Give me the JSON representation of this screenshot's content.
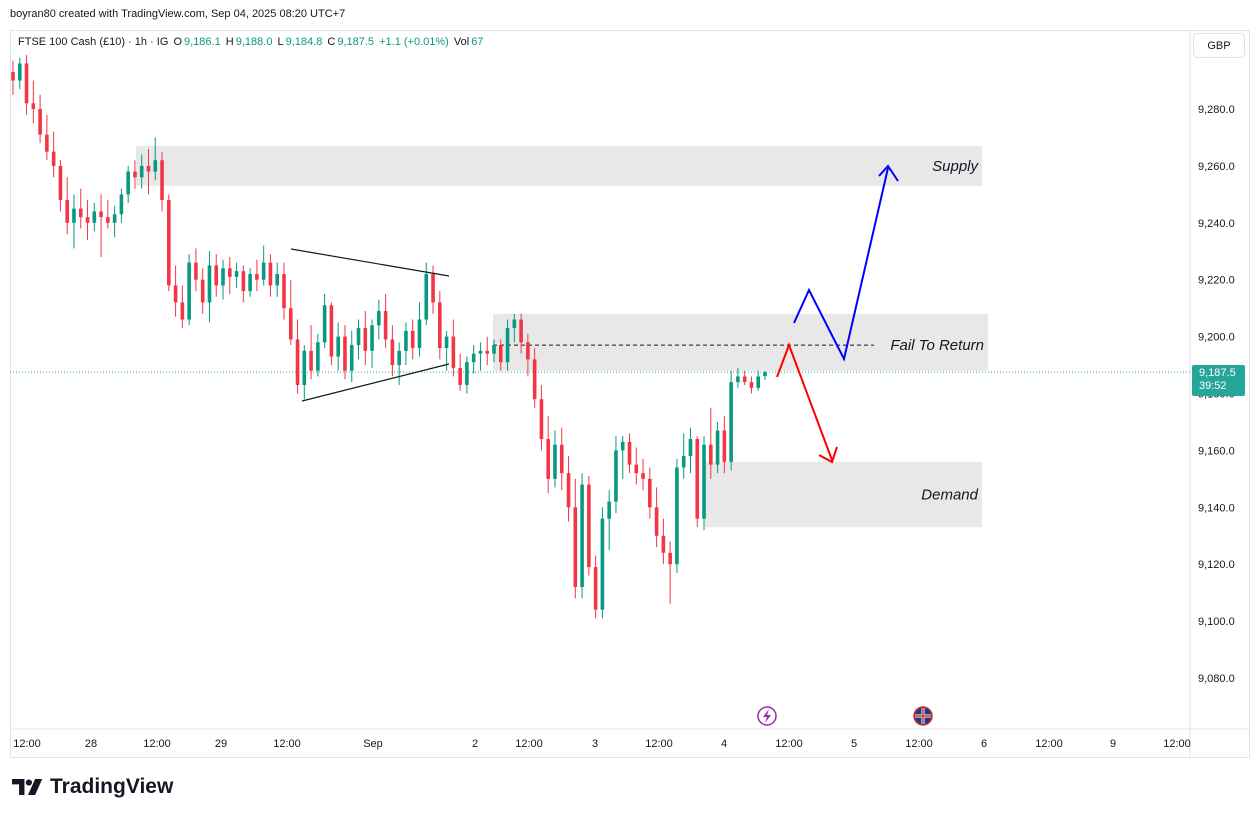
{
  "header": {
    "credit": "boyran80 created with TradingView.com, Sep 04, 2025 08:20 UTC+7"
  },
  "legend": {
    "symbol": "FTSE 100 Cash (£10) · 1h · IG",
    "open_label": "O",
    "open": "9,186.1",
    "high_label": "H",
    "high": "9,188.0",
    "low_label": "L",
    "low": "9,184.8",
    "close_label": "C",
    "close": "9,187.5",
    "change": "+1.1 (+0.01%)",
    "vol_label": "Vol",
    "vol": "67"
  },
  "currency": "GBP",
  "last_price": {
    "price": "9,187.5",
    "countdown": "39:52",
    "value": 9187.5,
    "color": "#26a69a"
  },
  "footer": {
    "brand": "TradingView"
  },
  "colors": {
    "up": "#089981",
    "down": "#f23645",
    "zone": "#e8e8e8",
    "arrow_bull": "#0000ff",
    "arrow_bear": "#ff0000"
  },
  "chart_data": {
    "type": "candlestick",
    "ylim": [
      9064,
      9300
    ],
    "y_ticks": [
      "9,080.0",
      "9,100.0",
      "9,120.0",
      "9,140.0",
      "9,160.0",
      "9,180.0",
      "9,200.0",
      "9,220.0",
      "9,240.0",
      "9,260.0",
      "9,280.0"
    ],
    "y_tick_values": [
      9080,
      9100,
      9120,
      9140,
      9160,
      9180,
      9200,
      9220,
      9240,
      9260,
      9280
    ],
    "x_ticks": [
      "12:00",
      "28",
      "12:00",
      "29",
      "12:00",
      "Sep",
      "2",
      "12:00",
      "3",
      "12:00",
      "4",
      "12:00",
      "5",
      "12:00",
      "6",
      "12:00",
      "9",
      "12:00"
    ],
    "zones": [
      {
        "label": "Supply",
        "top": 9267,
        "bottom": 9253
      },
      {
        "label": "Fail To Return",
        "top": 9208,
        "bottom": 9188
      },
      {
        "label": "Demand",
        "top": 9156,
        "bottom": 9133
      }
    ],
    "fail_level": 9197,
    "candles": [
      [
        9293,
        9297,
        9285,
        9290
      ],
      [
        9290,
        9298,
        9287,
        9296
      ],
      [
        9296,
        9299,
        9278,
        9282
      ],
      [
        9282,
        9290,
        9275,
        9280
      ],
      [
        9280,
        9285,
        9268,
        9271
      ],
      [
        9271,
        9278,
        9262,
        9265
      ],
      [
        9265,
        9272,
        9256,
        9260
      ],
      [
        9260,
        9262,
        9244,
        9248
      ],
      [
        9248,
        9256,
        9236,
        9240
      ],
      [
        9240,
        9250,
        9231,
        9245
      ],
      [
        9245,
        9252,
        9238,
        9242
      ],
      [
        9242,
        9248,
        9234,
        9240
      ],
      [
        9240,
        9247,
        9237,
        9244
      ],
      [
        9244,
        9250,
        9228,
        9242
      ],
      [
        9242,
        9248,
        9238,
        9240
      ],
      [
        9240,
        9246,
        9235,
        9243
      ],
      [
        9243,
        9252,
        9240,
        9250
      ],
      [
        9250,
        9260,
        9247,
        9258
      ],
      [
        9258,
        9262,
        9252,
        9256
      ],
      [
        9256,
        9264,
        9252,
        9260
      ],
      [
        9260,
        9266,
        9250,
        9258
      ],
      [
        9258,
        9270,
        9255,
        9262
      ],
      [
        9262,
        9265,
        9244,
        9248
      ],
      [
        9248,
        9250,
        9216,
        9218
      ],
      [
        9218,
        9225,
        9207,
        9212
      ],
      [
        9212,
        9218,
        9203,
        9206
      ],
      [
        9206,
        9229,
        9204,
        9226
      ],
      [
        9226,
        9231,
        9216,
        9220
      ],
      [
        9220,
        9224,
        9208,
        9212
      ],
      [
        9212,
        9230,
        9205,
        9225
      ],
      [
        9225,
        9229,
        9214,
        9218
      ],
      [
        9218,
        9227,
        9213,
        9224
      ],
      [
        9224,
        9228,
        9215,
        9221
      ],
      [
        9221,
        9226,
        9217,
        9223
      ],
      [
        9223,
        9225,
        9212,
        9216
      ],
      [
        9216,
        9224,
        9214,
        9222
      ],
      [
        9222,
        9227,
        9216,
        9220
      ],
      [
        9220,
        9232,
        9218,
        9226
      ],
      [
        9226,
        9229,
        9214,
        9218
      ],
      [
        9218,
        9226,
        9214,
        9222
      ],
      [
        9222,
        9226,
        9206,
        9210
      ],
      [
        9210,
        9220,
        9197,
        9199
      ],
      [
        9199,
        9206,
        9180,
        9183
      ],
      [
        9183,
        9197,
        9178,
        9195
      ],
      [
        9195,
        9204,
        9185,
        9188
      ],
      [
        9188,
        9201,
        9186,
        9198
      ],
      [
        9198,
        9215,
        9196,
        9211
      ],
      [
        9211,
        9212,
        9190,
        9193
      ],
      [
        9193,
        9205,
        9188,
        9200
      ],
      [
        9200,
        9204,
        9185,
        9188
      ],
      [
        9188,
        9202,
        9184,
        9197
      ],
      [
        9197,
        9206,
        9192,
        9203
      ],
      [
        9203,
        9209,
        9190,
        9195
      ],
      [
        9195,
        9206,
        9189,
        9204
      ],
      [
        9204,
        9213,
        9199,
        9209
      ],
      [
        9209,
        9215,
        9196,
        9199
      ],
      [
        9199,
        9204,
        9186,
        9190
      ],
      [
        9190,
        9198,
        9183,
        9195
      ],
      [
        9195,
        9205,
        9190,
        9202
      ],
      [
        9202,
        9206,
        9192,
        9196
      ],
      [
        9196,
        9212,
        9193,
        9206
      ],
      [
        9206,
        9226,
        9204,
        9222
      ],
      [
        9222,
        9225,
        9208,
        9212
      ],
      [
        9212,
        9216,
        9192,
        9196
      ],
      [
        9196,
        9202,
        9188,
        9200
      ],
      [
        9200,
        9206,
        9186,
        9189
      ],
      [
        9189,
        9194,
        9181,
        9183
      ],
      [
        9183,
        9193,
        9180,
        9191
      ],
      [
        9191,
        9197,
        9187,
        9194
      ],
      [
        9194,
        9198,
        9188,
        9195
      ],
      [
        9195,
        9200,
        9190,
        9194
      ],
      [
        9194,
        9199,
        9191,
        9197
      ],
      [
        9197,
        9199,
        9188,
        9191
      ],
      [
        9191,
        9206,
        9188,
        9203
      ],
      [
        9203,
        9208,
        9198,
        9206
      ],
      [
        9206,
        9208,
        9194,
        9198
      ],
      [
        9198,
        9201,
        9186,
        9192
      ],
      [
        9192,
        9196,
        9175,
        9178
      ],
      [
        9178,
        9183,
        9160,
        9164
      ],
      [
        9164,
        9172,
        9145,
        9150
      ],
      [
        9150,
        9167,
        9147,
        9162
      ],
      [
        9162,
        9168,
        9146,
        9152
      ],
      [
        9152,
        9158,
        9135,
        9140
      ],
      [
        9140,
        9150,
        9108,
        9112
      ],
      [
        9112,
        9152,
        9108,
        9148
      ],
      [
        9148,
        9151,
        9116,
        9119
      ],
      [
        9119,
        9123,
        9101,
        9104
      ],
      [
        9104,
        9140,
        9101,
        9136
      ],
      [
        9136,
        9146,
        9125,
        9142
      ],
      [
        9142,
        9165,
        9138,
        9160
      ],
      [
        9160,
        9165,
        9150,
        9163
      ],
      [
        9163,
        9166,
        9152,
        9155
      ],
      [
        9155,
        9161,
        9148,
        9152
      ],
      [
        9152,
        9157,
        9146,
        9150
      ],
      [
        9150,
        9154,
        9136,
        9140
      ],
      [
        9140,
        9147,
        9126,
        9130
      ],
      [
        9130,
        9136,
        9120,
        9124
      ],
      [
        9124,
        9128,
        9106,
        9120
      ],
      [
        9120,
        9157,
        9117,
        9154
      ],
      [
        9154,
        9166,
        9150,
        9158
      ],
      [
        9158,
        9168,
        9152,
        9164
      ],
      [
        9164,
        9165,
        9133,
        9136
      ],
      [
        9136,
        9165,
        9132,
        9162
      ],
      [
        9162,
        9175,
        9150,
        9155
      ],
      [
        9155,
        9170,
        9152,
        9167
      ],
      [
        9167,
        9172,
        9152,
        9156
      ],
      [
        9156,
        9188,
        9153,
        9184
      ],
      [
        9184,
        9189,
        9182,
        9186
      ],
      [
        9186,
        9188,
        9183,
        9184
      ],
      [
        9184,
        9186,
        9180,
        9182
      ],
      [
        9182,
        9188,
        9181,
        9186
      ],
      [
        9186.1,
        9188,
        9184.8,
        9187.5
      ]
    ]
  }
}
